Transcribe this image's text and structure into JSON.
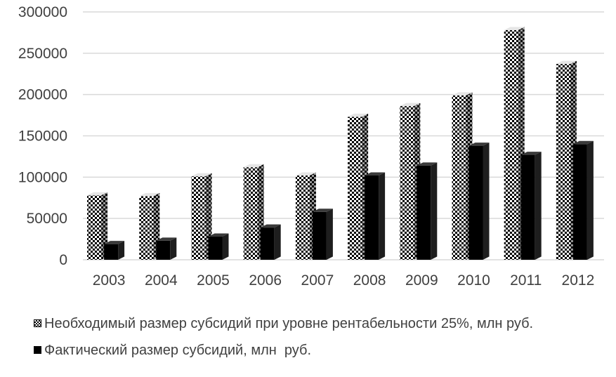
{
  "chart_data": {
    "type": "bar",
    "title": "",
    "xlabel": "",
    "ylabel": "",
    "categories": [
      "2003",
      "2004",
      "2005",
      "2006",
      "2007",
      "2008",
      "2009",
      "2010",
      "2011",
      "2012"
    ],
    "ylim": [
      0,
      300000
    ],
    "yticks": [
      "0",
      "50000",
      "100000",
      "150000",
      "200000",
      "250000",
      "300000"
    ],
    "grid": true,
    "legend_position": "bottom",
    "style": "3d-clustered-column",
    "series": [
      {
        "name": "Необходимый размер субсидий при уровне рентабельности 25%, млн руб.",
        "pattern": "checkerboard",
        "color": "#000000",
        "values": [
          78000,
          77000,
          101000,
          112000,
          102000,
          173000,
          186000,
          199000,
          278000,
          237000
        ]
      },
      {
        "name": "Фактический размер субсидий, млн  руб.",
        "pattern": "solid",
        "color": "#000000",
        "values": [
          19000,
          23000,
          28000,
          39000,
          58000,
          102000,
          114000,
          138000,
          127000,
          140000
        ]
      }
    ]
  }
}
